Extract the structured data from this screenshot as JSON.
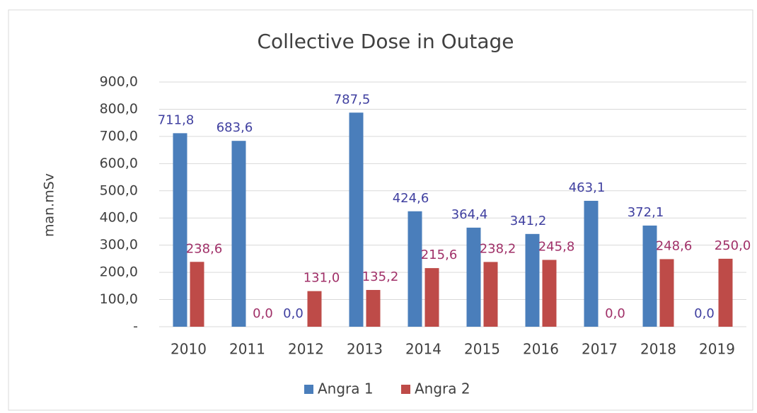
{
  "chart_data": {
    "type": "bar",
    "title": "Collective Dose in Outage",
    "y_axis_label": "man.mSv",
    "categories": [
      "2010",
      "2011",
      "2012",
      "2013",
      "2014",
      "2015",
      "2016",
      "2017",
      "2018",
      "2019"
    ],
    "series": [
      {
        "name": "Angra 1",
        "color": "#4a7ebb",
        "label_color": "#4040a0",
        "values": [
          711.8,
          683.6,
          0,
          787.5,
          424.6,
          364.4,
          341.2,
          463.1,
          372.1,
          0
        ],
        "value_labels": [
          "711,8",
          "683,6",
          "0,0",
          "787,5",
          "424,6",
          "364,4",
          "341,2",
          "463,1",
          "372,1",
          "0,0"
        ]
      },
      {
        "name": "Angra 2",
        "color": "#be4b48",
        "label_color": "#a03068",
        "values": [
          238.6,
          0,
          131.0,
          135.2,
          215.6,
          238.2,
          245.8,
          0,
          248.6,
          250.0
        ],
        "value_labels": [
          "238,6",
          "0,0",
          "131,0",
          "135,2",
          "215,6",
          "238,2",
          "245,8",
          "0,0",
          "248,6",
          "250,0"
        ]
      }
    ],
    "ylim": [
      0,
      900
    ],
    "yticks": [
      {
        "value": 0,
        "label": "-"
      },
      {
        "value": 100,
        "label": "100,0"
      },
      {
        "value": 200,
        "label": "200,0"
      },
      {
        "value": 300,
        "label": "300,0"
      },
      {
        "value": 400,
        "label": "400,0"
      },
      {
        "value": 500,
        "label": "500,0"
      },
      {
        "value": 600,
        "label": "600,0"
      },
      {
        "value": 700,
        "label": "700,0"
      },
      {
        "value": 800,
        "label": "800,0"
      },
      {
        "value": 900,
        "label": "900,0"
      }
    ],
    "grid": true,
    "legend": "bottom"
  }
}
